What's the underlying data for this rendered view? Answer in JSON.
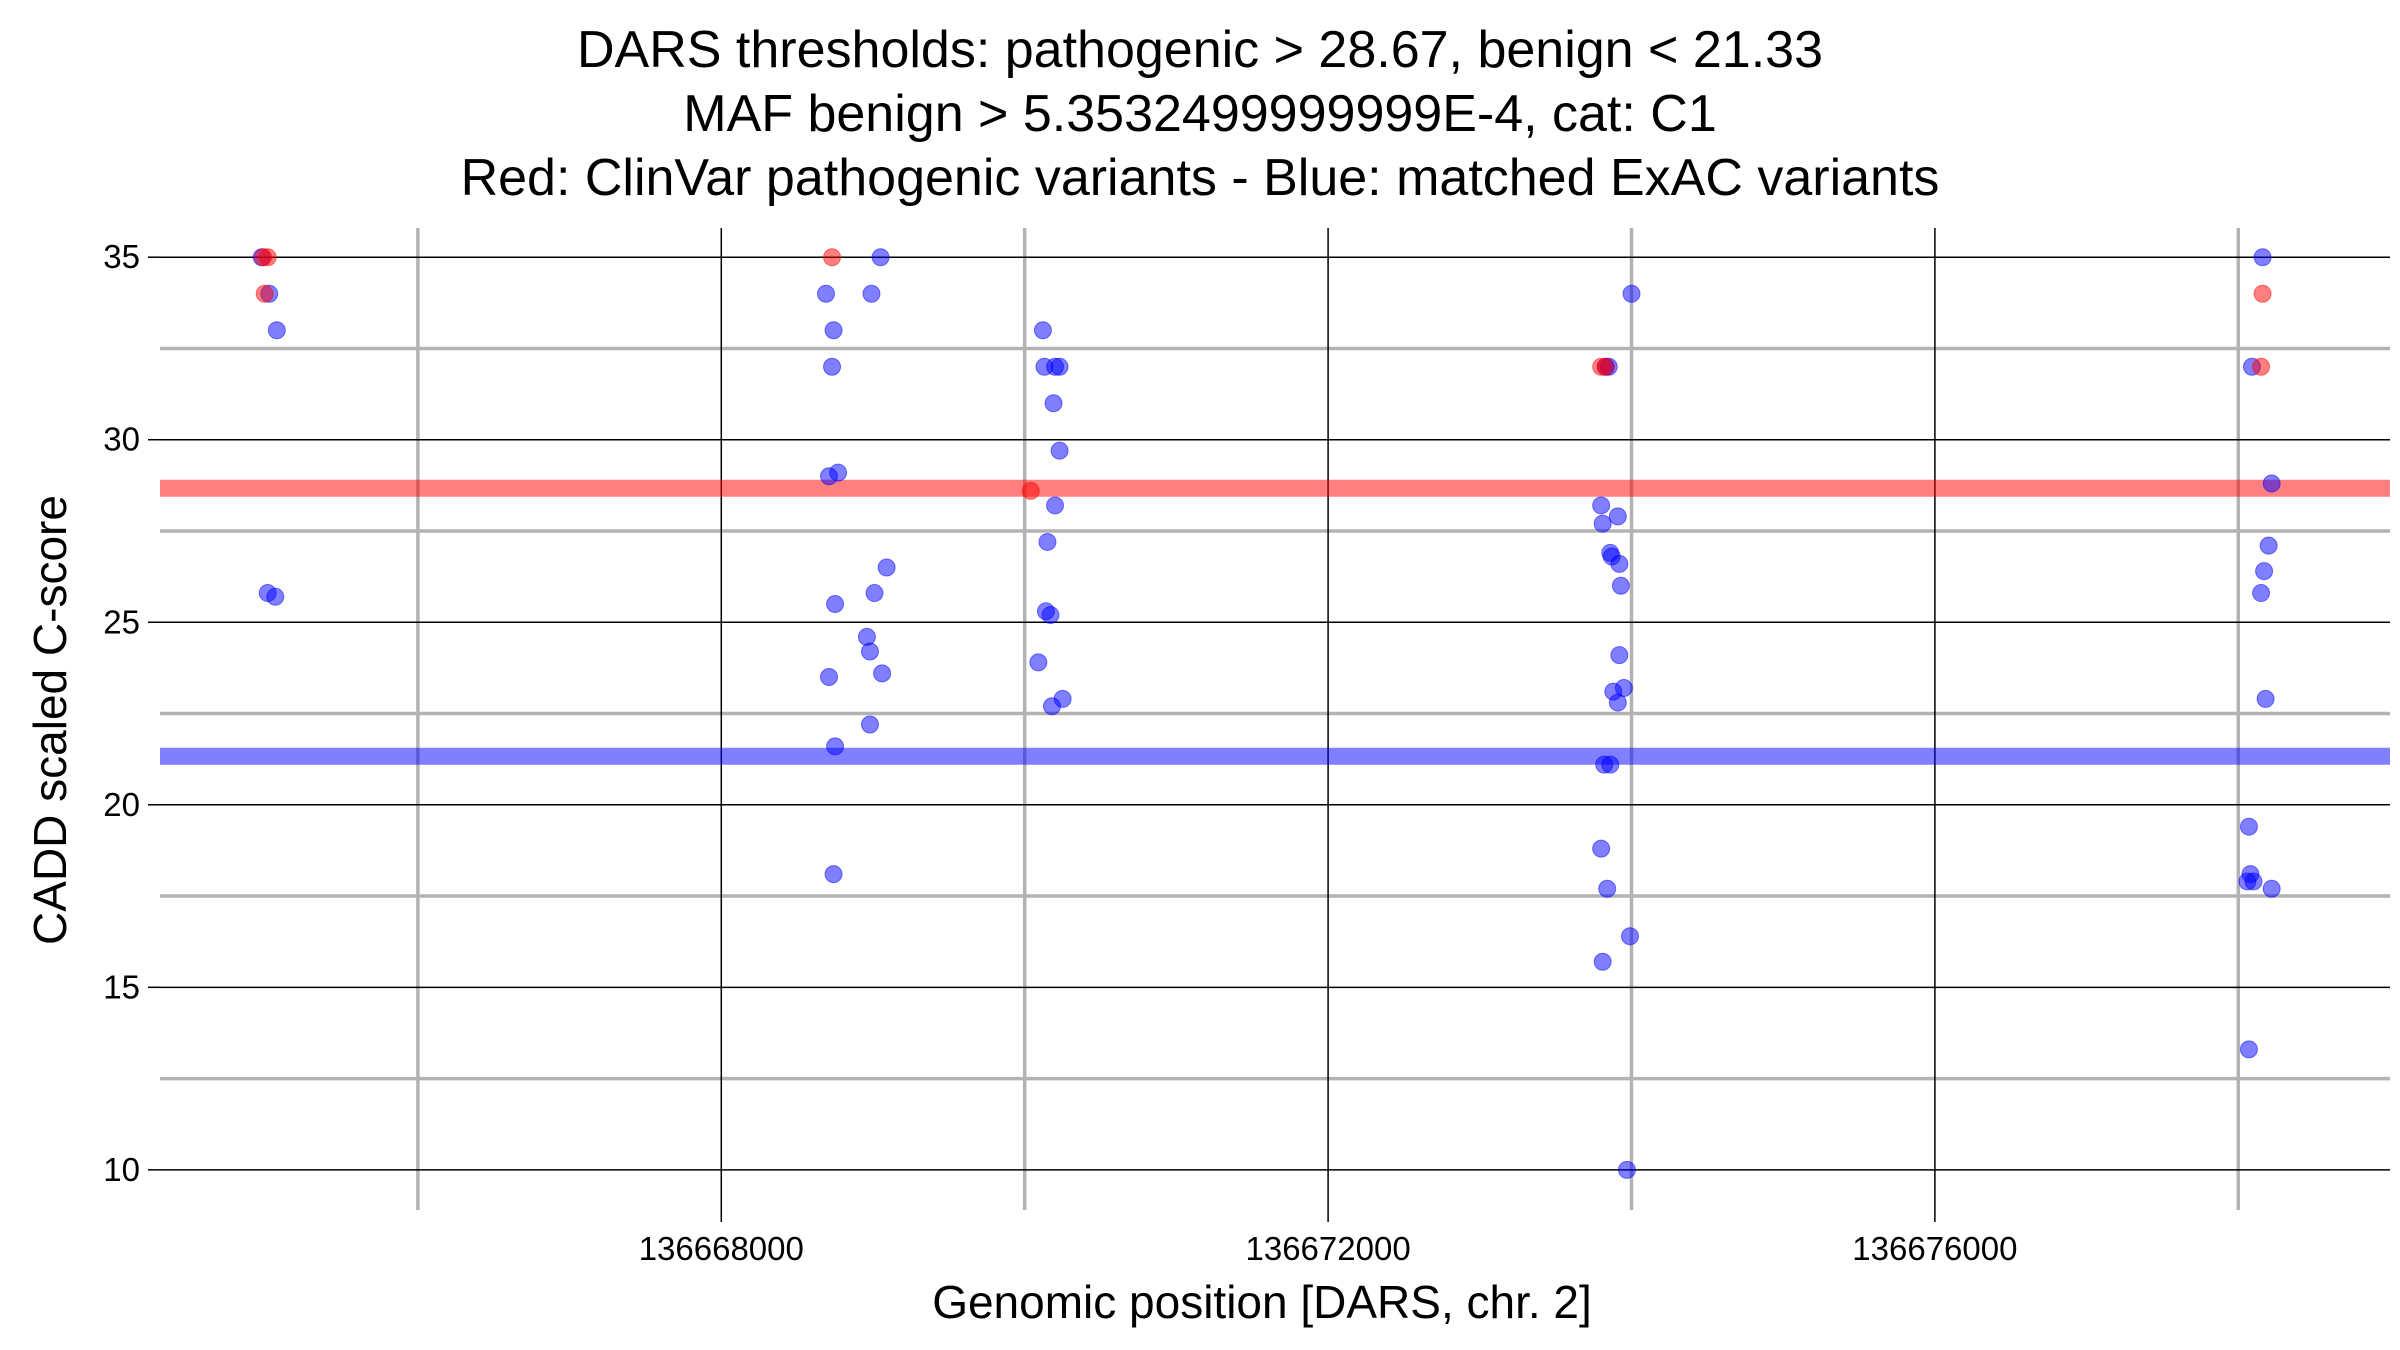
{
  "chart_data": {
    "type": "scatter",
    "title_lines": [
      "DARS thresholds: pathogenic > 28.67, benign < 21.33",
      "MAF benign > 5.3532499999999E-4, cat: C1",
      "Red: ClinVar pathogenic variants - Blue: matched ExAC variants"
    ],
    "xlabel": "Genomic position [DARS, chr. 2]",
    "ylabel": "CADD scaled C-score",
    "xlim": [
      136664300,
      136679000
    ],
    "ylim": [
      8.9,
      35.8
    ],
    "x_major_ticks": [
      136668000,
      136672000,
      136676000
    ],
    "x_minor_ticks": [
      136666000,
      136670000,
      136674000,
      136678000
    ],
    "x_tick_labels": [
      "136668000",
      "136672000",
      "136676000"
    ],
    "y_major_ticks": [
      10,
      15,
      20,
      25,
      30,
      35
    ],
    "y_minor_ticks": [
      12.5,
      17.5,
      22.5,
      27.5,
      32.5
    ],
    "y_tick_labels": [
      "10",
      "15",
      "20",
      "25",
      "30",
      "35"
    ],
    "thresholds": [
      {
        "name": "pathogenic",
        "value": 28.67,
        "color": "#ff0000"
      },
      {
        "name": "benign",
        "value": 21.33,
        "color": "#0000ff"
      }
    ],
    "colors": {
      "pathogenic": "#ff0000",
      "exac": "#0000ff",
      "grid_major": "#000000",
      "grid_minor": "#b3b3b3"
    },
    "series": [
      {
        "name": "ClinVar pathogenic variants",
        "color": "#ff0000",
        "points": [
          [
            136664980,
            35.0
          ],
          [
            136665010,
            35.0
          ],
          [
            136664990,
            34.0
          ],
          [
            136668730,
            35.0
          ],
          [
            136670040,
            28.6
          ],
          [
            136673800,
            32.0
          ],
          [
            136673830,
            32.0
          ],
          [
            136678160,
            34.0
          ],
          [
            136678150,
            32.0
          ]
        ]
      },
      {
        "name": "matched ExAC variants",
        "color": "#0000ff",
        "points": [
          [
            136664970,
            35.0
          ],
          [
            136665020,
            34.0
          ],
          [
            136665070,
            33.0
          ],
          [
            136665010,
            25.8
          ],
          [
            136665060,
            25.7
          ],
          [
            136668690,
            34.0
          ],
          [
            136668740,
            33.0
          ],
          [
            136668730,
            32.0
          ],
          [
            136668710,
            29.0
          ],
          [
            136668770,
            29.1
          ],
          [
            136668750,
            25.5
          ],
          [
            136668710,
            23.5
          ],
          [
            136668750,
            21.6
          ],
          [
            136668740,
            18.1
          ],
          [
            136669050,
            35.0
          ],
          [
            136668990,
            34.0
          ],
          [
            136669090,
            26.5
          ],
          [
            136669010,
            25.8
          ],
          [
            136668960,
            24.6
          ],
          [
            136668980,
            24.2
          ],
          [
            136669060,
            23.6
          ],
          [
            136668980,
            22.2
          ],
          [
            136670120,
            33.0
          ],
          [
            136670130,
            32.0
          ],
          [
            136670200,
            32.0
          ],
          [
            136670230,
            32.0
          ],
          [
            136670190,
            31.0
          ],
          [
            136670230,
            29.7
          ],
          [
            136670200,
            28.2
          ],
          [
            136670150,
            27.2
          ],
          [
            136670140,
            25.3
          ],
          [
            136670170,
            25.2
          ],
          [
            136670090,
            23.9
          ],
          [
            136670250,
            22.9
          ],
          [
            136670180,
            22.7
          ],
          [
            136674000,
            34.0
          ],
          [
            136673830,
            32.0
          ],
          [
            136673850,
            32.0
          ],
          [
            136673800,
            28.2
          ],
          [
            136673910,
            27.9
          ],
          [
            136673810,
            27.7
          ],
          [
            136673860,
            26.9
          ],
          [
            136673870,
            26.8
          ],
          [
            136673920,
            26.6
          ],
          [
            136673930,
            26.0
          ],
          [
            136673920,
            24.1
          ],
          [
            136673880,
            23.1
          ],
          [
            136673950,
            23.2
          ],
          [
            136673910,
            22.8
          ],
          [
            136673820,
            21.1
          ],
          [
            136673860,
            21.1
          ],
          [
            136673800,
            18.8
          ],
          [
            136673840,
            17.7
          ],
          [
            136673990,
            16.4
          ],
          [
            136673810,
            15.7
          ],
          [
            136673970,
            10.0
          ],
          [
            136678160,
            35.0
          ],
          [
            136678090,
            32.0
          ],
          [
            136678220,
            28.8
          ],
          [
            136678200,
            27.1
          ],
          [
            136678170,
            26.4
          ],
          [
            136678150,
            25.8
          ],
          [
            136678180,
            22.9
          ],
          [
            136678070,
            19.4
          ],
          [
            136678080,
            18.1
          ],
          [
            136678060,
            17.9
          ],
          [
            136678100,
            17.9
          ],
          [
            136678220,
            17.7
          ],
          [
            136678070,
            13.3
          ]
        ]
      }
    ]
  }
}
